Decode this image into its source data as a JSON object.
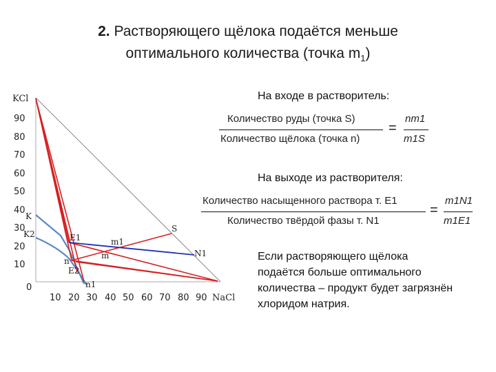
{
  "slide": {
    "title_num": "2.",
    "title_line1": "Растворяющего щёлока подаётся меньше",
    "title_line2_pre": "оптимального количества (точка m",
    "title_line2_sub": "1",
    "title_line2_post": ")"
  },
  "diagram": {
    "axis_top_label": "KCl",
    "axis_right_label": "NaCl",
    "origin_label": "0",
    "y_ticks": [
      "90",
      "80",
      "70",
      "60",
      "50",
      "40",
      "30",
      "20",
      "10"
    ],
    "x_ticks": [
      "10",
      "20",
      "30",
      "40",
      "50",
      "60",
      "70",
      "80",
      "90"
    ],
    "points": {
      "K": "K",
      "K2": "K2",
      "E1": "E1",
      "m1": "m1",
      "S": "S",
      "N1": "N1",
      "n": "n",
      "E2": "E2",
      "m": "m",
      "n1": "n1"
    },
    "colors": {
      "red": "#d42020",
      "blue": "#1f2fb8",
      "curve": "#5b87c4",
      "grey": "#888888"
    }
  },
  "input_section": {
    "heading": "На входе в растворитель:",
    "numerator": "Количество руды (точка S)",
    "denominator": "Количество щёлока (точка n)",
    "rhs_num": "nm1",
    "rhs_den": "m1S"
  },
  "output_section": {
    "heading": "На выходе из растворителя:",
    "numerator": "Количество насыщенного раствора т. E1",
    "denominator": "Количество твёрдой фазы т. N1",
    "rhs_num": "m1N1",
    "rhs_den": "m1E1"
  },
  "conclusion": "Если растворяющего щёлока подаётся больше оптимального количества – продукт будет загрязнён хлоридом натрия."
}
